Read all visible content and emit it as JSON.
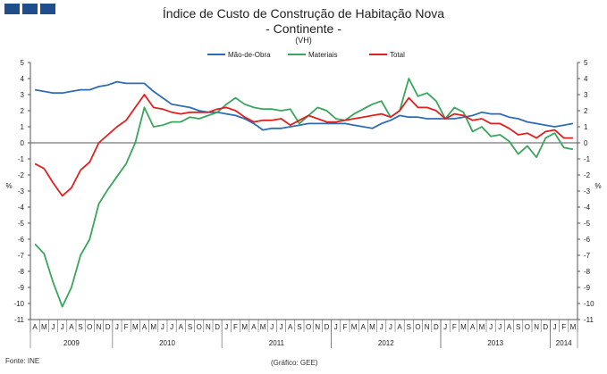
{
  "header": {
    "logo_icon": "ine-logo-blocks"
  },
  "footer": {
    "source": "Fonte: INE",
    "credit": "(Gráfico: GEE)"
  },
  "chart_data": {
    "type": "line",
    "title": "Índice de Custo de Construção de Habitação Nova",
    "subtitle": "- Continente -",
    "unit_note": "(VH)",
    "ylabel_left": "%",
    "ylabel_right": "%",
    "ylim": [
      -11,
      5
    ],
    "yticks": [
      5,
      4,
      3,
      2,
      1,
      0,
      -1,
      -2,
      -3,
      -4,
      -5,
      -6,
      -7,
      -8,
      -9,
      -10,
      -11
    ],
    "grid": false,
    "legend_position": "top",
    "months": [
      "A",
      "M",
      "J",
      "J",
      "A",
      "S",
      "O",
      "N",
      "D",
      "J",
      "F",
      "M",
      "A",
      "M",
      "J",
      "J",
      "A",
      "S",
      "O",
      "N",
      "D",
      "J",
      "F",
      "M",
      "A",
      "M",
      "J",
      "J",
      "A",
      "S",
      "O",
      "N",
      "D",
      "J",
      "F",
      "M",
      "A",
      "M",
      "J",
      "J",
      "A",
      "S",
      "O",
      "N",
      "D",
      "J",
      "F",
      "M",
      "A",
      "M",
      "J",
      "J",
      "A",
      "S",
      "O",
      "N",
      "D",
      "J",
      "F",
      "M"
    ],
    "years": [
      {
        "label": "2009",
        "start": 0,
        "end": 8
      },
      {
        "label": "2010",
        "start": 9,
        "end": 20
      },
      {
        "label": "2011",
        "start": 21,
        "end": 32
      },
      {
        "label": "2012",
        "start": 33,
        "end": 44
      },
      {
        "label": "2013",
        "start": 45,
        "end": 56
      },
      {
        "label": "2014",
        "start": 57,
        "end": 59
      }
    ],
    "series": [
      {
        "name": "Mão-de-Obra",
        "color": "#2e6db4",
        "values": [
          3.3,
          3.2,
          3.1,
          3.1,
          3.2,
          3.3,
          3.3,
          3.5,
          3.6,
          3.8,
          3.7,
          3.7,
          3.7,
          3.2,
          2.8,
          2.4,
          2.3,
          2.2,
          2.0,
          1.9,
          1.9,
          1.8,
          1.7,
          1.5,
          1.2,
          0.8,
          0.9,
          0.9,
          1.0,
          1.1,
          1.2,
          1.2,
          1.2,
          1.2,
          1.2,
          1.1,
          1.0,
          0.9,
          1.2,
          1.4,
          1.7,
          1.6,
          1.6,
          1.5,
          1.5,
          1.5,
          1.5,
          1.6,
          1.7,
          1.9,
          1.8,
          1.8,
          1.6,
          1.5,
          1.3,
          1.2,
          1.1,
          1.0,
          1.1,
          1.2
        ]
      },
      {
        "name": "Materiais",
        "color": "#3aa55c",
        "values": [
          -6.3,
          -6.9,
          -8.7,
          -10.2,
          -9.0,
          -7.0,
          -6.0,
          -3.8,
          -2.9,
          -2.1,
          -1.3,
          0.0,
          2.2,
          1.0,
          1.1,
          1.3,
          1.3,
          1.6,
          1.5,
          1.7,
          1.9,
          2.4,
          2.8,
          2.4,
          2.2,
          2.1,
          2.1,
          2.0,
          2.1,
          1.2,
          1.7,
          2.2,
          2.0,
          1.5,
          1.4,
          1.8,
          2.1,
          2.4,
          2.6,
          1.6,
          2.0,
          4.0,
          2.9,
          3.1,
          2.6,
          1.5,
          2.2,
          1.9,
          0.7,
          1.0,
          0.4,
          0.5,
          0.1,
          -0.7,
          -0.2,
          -0.9,
          0.3,
          0.6,
          -0.3,
          -0.4
        ]
      },
      {
        "name": "Total",
        "color": "#e02020",
        "values": [
          -1.3,
          -1.6,
          -2.5,
          -3.3,
          -2.8,
          -1.7,
          -1.2,
          0.0,
          0.5,
          1.0,
          1.4,
          2.2,
          3.0,
          2.2,
          2.1,
          1.9,
          1.8,
          1.9,
          1.9,
          1.9,
          2.1,
          2.2,
          2.0,
          1.6,
          1.3,
          1.4,
          1.4,
          1.5,
          1.1,
          1.4,
          1.7,
          1.5,
          1.3,
          1.3,
          1.4,
          1.5,
          1.6,
          1.7,
          1.8,
          1.6,
          2.0,
          2.8,
          2.2,
          2.2,
          2.0,
          1.5,
          1.8,
          1.7,
          1.4,
          1.5,
          1.2,
          1.2,
          0.9,
          0.5,
          0.6,
          0.3,
          0.7,
          0.8,
          0.3,
          0.3
        ]
      }
    ]
  }
}
